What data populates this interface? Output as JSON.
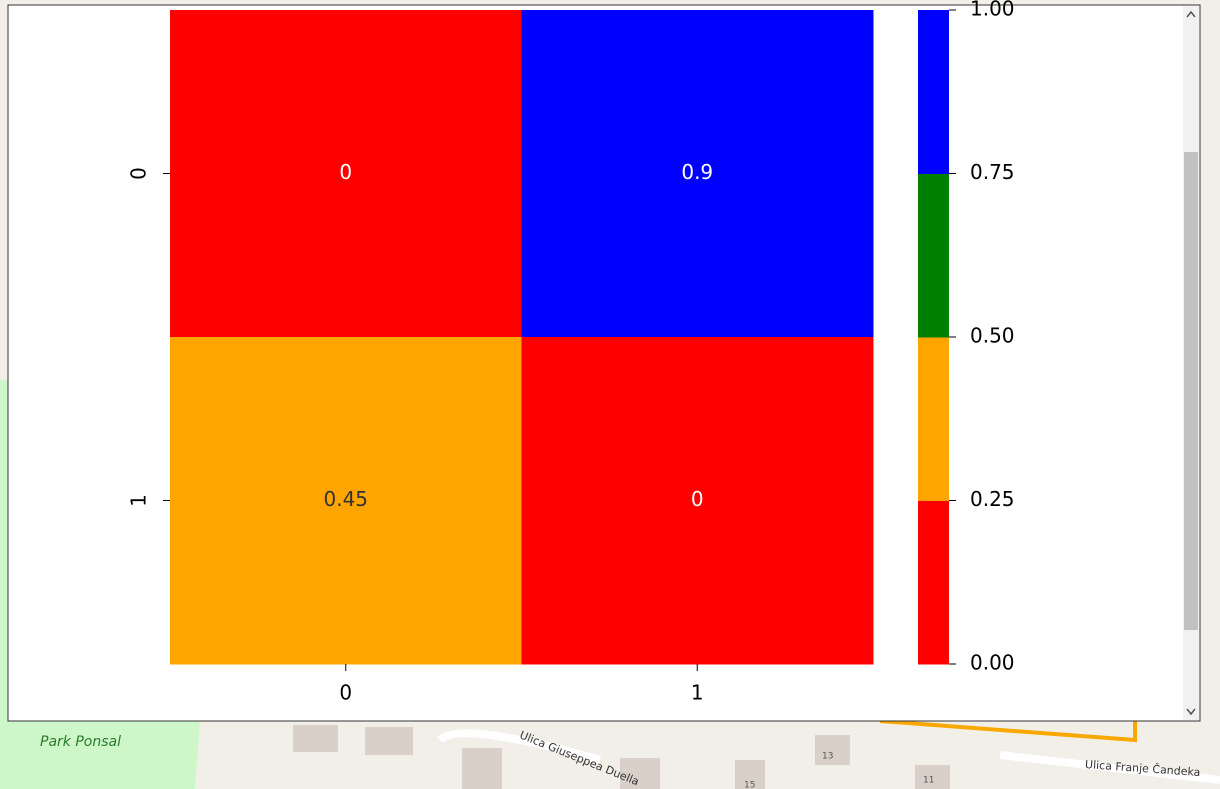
{
  "map": {
    "labels": [
      "Park Ponsal",
      "Ulica Giuseppea Duella",
      "Ulica Franje Čandeka",
      "13",
      "11",
      "15"
    ]
  },
  "chart_data": {
    "type": "heatmap",
    "x_categories": [
      "0",
      "1"
    ],
    "y_categories": [
      "0",
      "1"
    ],
    "values": [
      [
        0,
        0.9
      ],
      [
        0.45,
        0
      ]
    ],
    "colorbar": {
      "colors": [
        "#ff0000",
        "#ffa500",
        "#008000",
        "#0000ff"
      ],
      "lim": [
        0,
        1
      ],
      "ticks": [
        {
          "value": 0,
          "label": "0.00"
        },
        {
          "value": 0.25,
          "label": "0.25"
        },
        {
          "value": 0.5,
          "label": "0.50"
        },
        {
          "value": 0.75,
          "label": "0.75"
        },
        {
          "value": 1,
          "label": "1.00"
        }
      ]
    }
  }
}
